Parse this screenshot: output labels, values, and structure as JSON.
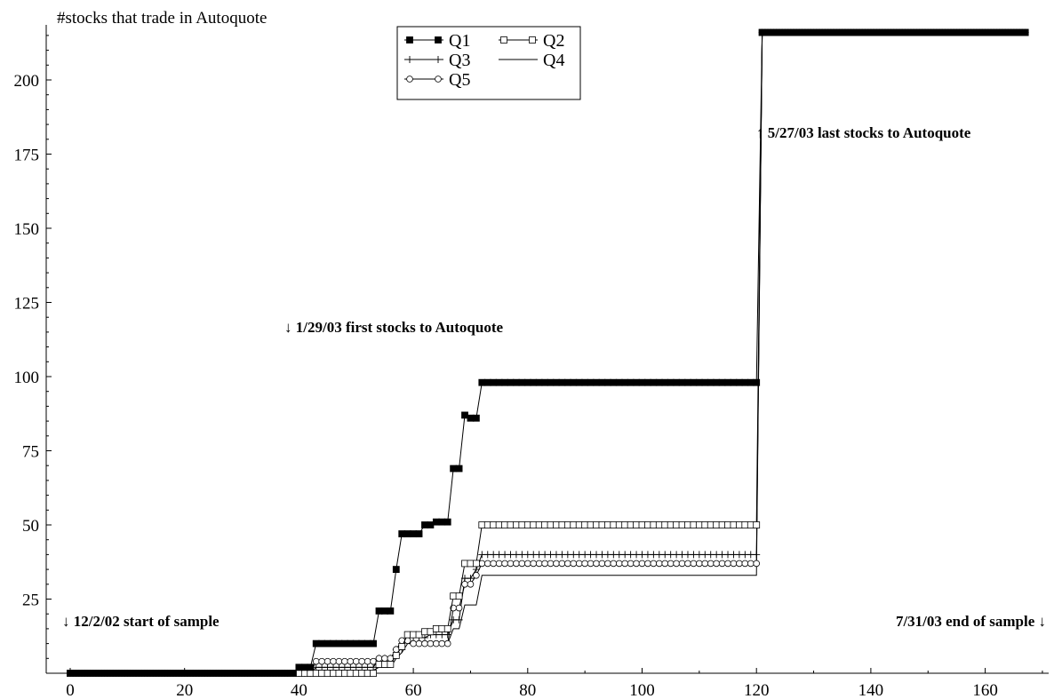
{
  "chart_data": {
    "type": "line",
    "title": "#stocks that trade in Autoquote",
    "xlabel": "",
    "ylabel": "",
    "xlim": [
      -4,
      172
    ],
    "ylim": [
      0,
      217
    ],
    "xticks": [
      0,
      20,
      40,
      60,
      80,
      100,
      120,
      140,
      160
    ],
    "yticks": [
      25,
      50,
      75,
      100,
      125,
      150,
      175,
      200
    ],
    "grid": false,
    "legend_position": "top-center",
    "legend_layout": [
      [
        "Q1",
        "Q2"
      ],
      [
        "Q3",
        "Q4"
      ],
      [
        "Q5"
      ]
    ],
    "series": [
      {
        "name": "Q1",
        "marker": "filled-square",
        "steps": [
          [
            0,
            0
          ],
          [
            39,
            0
          ],
          [
            40,
            2
          ],
          [
            43,
            10
          ],
          [
            54,
            21
          ],
          [
            57,
            35
          ],
          [
            58,
            47
          ],
          [
            61,
            47
          ],
          [
            62,
            50
          ],
          [
            64,
            51
          ],
          [
            67,
            69
          ],
          [
            69,
            87
          ],
          [
            70,
            86
          ],
          [
            72,
            98
          ],
          [
            120,
            98
          ],
          [
            121,
            216
          ],
          [
            167,
            216
          ]
        ]
      },
      {
        "name": "Q2",
        "marker": "open-square",
        "steps": [
          [
            0,
            0
          ],
          [
            43,
            0
          ],
          [
            54,
            3
          ],
          [
            57,
            6
          ],
          [
            58,
            9
          ],
          [
            59,
            13
          ],
          [
            62,
            14
          ],
          [
            64,
            15
          ],
          [
            67,
            26
          ],
          [
            69,
            37
          ],
          [
            72,
            50
          ],
          [
            120,
            50
          ],
          [
            121,
            216
          ],
          [
            167,
            216
          ]
        ]
      },
      {
        "name": "Q3",
        "marker": "plus",
        "steps": [
          [
            0,
            0
          ],
          [
            43,
            2
          ],
          [
            54,
            5
          ],
          [
            57,
            8
          ],
          [
            59,
            12
          ],
          [
            63,
            13
          ],
          [
            67,
            18
          ],
          [
            69,
            32
          ],
          [
            71,
            35
          ],
          [
            72,
            40
          ],
          [
            120,
            40
          ],
          [
            121,
            216
          ],
          [
            167,
            216
          ]
        ]
      },
      {
        "name": "Q4",
        "marker": "none",
        "steps": [
          [
            0,
            0
          ],
          [
            43,
            1
          ],
          [
            54,
            2
          ],
          [
            57,
            5
          ],
          [
            58,
            7
          ],
          [
            59,
            10
          ],
          [
            62,
            10
          ],
          [
            67,
            15
          ],
          [
            69,
            23
          ],
          [
            71,
            23
          ],
          [
            72,
            33
          ],
          [
            120,
            33
          ],
          [
            121,
            216
          ],
          [
            167,
            216
          ]
        ]
      },
      {
        "name": "Q5",
        "marker": "open-circle",
        "steps": [
          [
            0,
            0
          ],
          [
            43,
            4
          ],
          [
            54,
            5
          ],
          [
            57,
            8
          ],
          [
            58,
            11
          ],
          [
            60,
            10
          ],
          [
            67,
            22
          ],
          [
            69,
            30
          ],
          [
            71,
            33
          ],
          [
            72,
            37
          ],
          [
            120,
            37
          ],
          [
            121,
            216
          ],
          [
            167,
            216
          ]
        ]
      }
    ],
    "annotations": [
      {
        "id": "first",
        "text": "↓ 1/29/03 first stocks to Autoquote"
      },
      {
        "id": "last",
        "text": "↑ 5/27/03 last stocks to Autoquote"
      },
      {
        "id": "start",
        "text": "↓ 12/2/02 start of sample"
      },
      {
        "id": "end",
        "text": "7/31/03 end of sample ↓"
      }
    ]
  }
}
